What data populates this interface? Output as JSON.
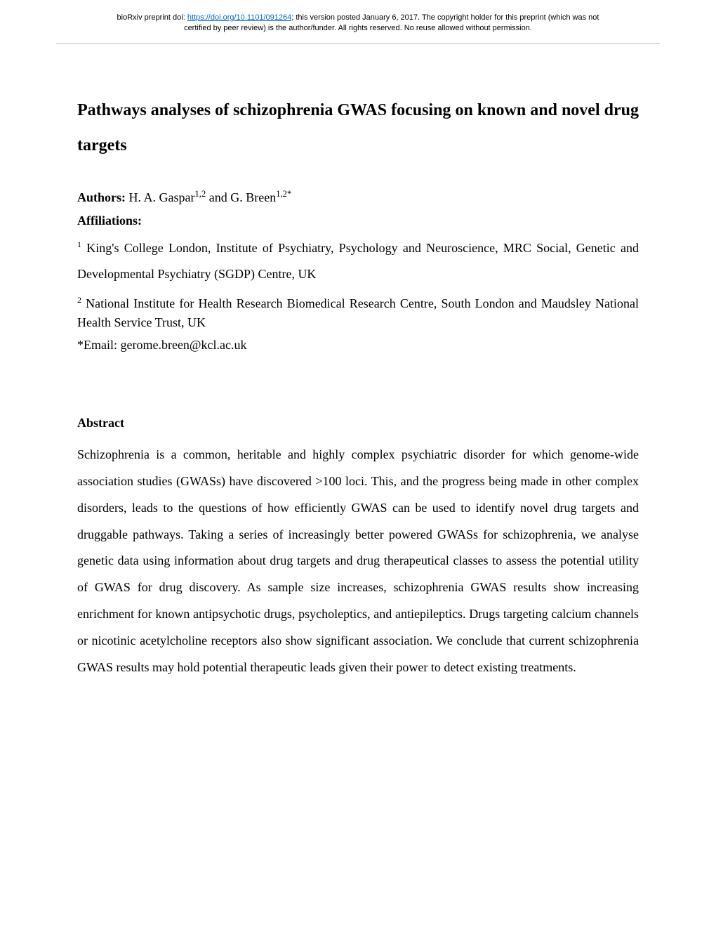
{
  "preprint": {
    "line1_prefix": "bioRxiv preprint doi: ",
    "doi_url": "https://doi.org/10.1101/091264",
    "line1_suffix": "; this version posted January 6, 2017. The copyright holder for this preprint (which was not",
    "line2": "certified by peer review) is the author/funder. All rights reserved. No reuse allowed without permission."
  },
  "title": "Pathways analyses of schizophrenia GWAS focusing on known and novel drug targets",
  "authors": {
    "label": "Authors:",
    "text": " H. A. Gaspar",
    "sup1": "1,2",
    "connector": " and G. Breen",
    "sup2": "1,2*"
  },
  "affiliations": {
    "label": "Affiliations:",
    "aff1_sup": "1",
    "aff1_text": " King's College London, Institute of Psychiatry, Psychology and Neuroscience, MRC Social, Genetic and Developmental Psychiatry (SGDP) Centre, UK",
    "aff2_sup": "2",
    "aff2_text": " National Institute for Health Research Biomedical Research Centre, South London and Maudsley National Health Service Trust, UK"
  },
  "email": "*Email: gerome.breen@kcl.ac.uk",
  "abstract": {
    "label": "Abstract",
    "body": "Schizophrenia is a common, heritable and highly complex psychiatric disorder for which genome-wide association studies (GWASs) have discovered >100 loci. This, and the progress being made in other complex disorders, leads to the questions of how efficiently GWAS can be used to identify novel drug targets and druggable pathways. Taking a series of increasingly better powered GWASs for schizophrenia, we analyse genetic data using information about drug targets and drug therapeutical classes to assess the potential utility of GWAS for drug discovery. As sample size increases, schizophrenia GWAS results show increasing enrichment for known antipsychotic drugs, psycholeptics, and antiepileptics. Drugs targeting calcium channels or nicotinic acetylcholine receptors also show significant association. We conclude that current schizophrenia GWAS results may hold potential therapeutic leads given their power to detect existing treatments."
  },
  "colors": {
    "link": "#0066cc",
    "text": "#000000",
    "divider": "#bbbbbb",
    "background": "#ffffff"
  },
  "typography": {
    "body_font": "Times New Roman",
    "header_font": "Arial",
    "title_fontsize": 24,
    "body_fontsize": 18,
    "header_fontsize": 11,
    "line_height": 2.1
  }
}
